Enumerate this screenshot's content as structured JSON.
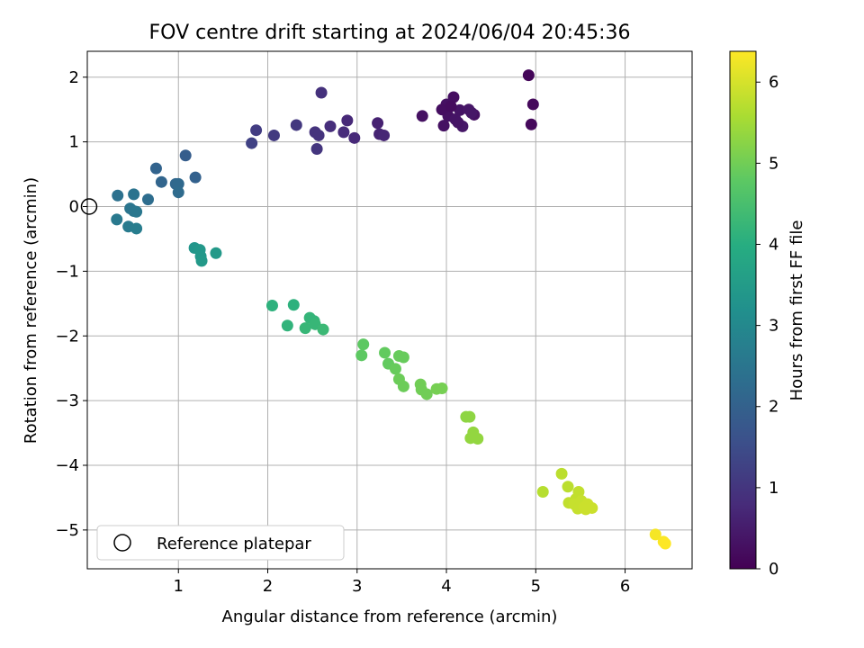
{
  "chart_data": {
    "type": "scatter",
    "title": "FOV centre drift starting at 2024/06/04 20:45:36",
    "xlabel": "Angular distance from reference (arcmin)",
    "ylabel": "Rotation from reference (arcmin)",
    "xlim": [
      -0.02,
      6.75
    ],
    "ylim": [
      -5.6,
      2.4
    ],
    "xticks": [
      1,
      2,
      3,
      4,
      5,
      6
    ],
    "yticks": [
      -5,
      -4,
      -3,
      -2,
      -1,
      0,
      1,
      2
    ],
    "grid": true,
    "legend": {
      "position": "lower-left",
      "entries": [
        "Reference platepar"
      ]
    },
    "reference_point": {
      "x": 0,
      "y": 0,
      "label": "Reference platepar"
    },
    "colorbar": {
      "label": "Hours from first FF file",
      "range": [
        0,
        6.38
      ],
      "ticks": [
        0,
        1,
        2,
        3,
        4,
        5,
        6
      ],
      "colormap": "viridis"
    },
    "series": [
      {
        "points": [
          [
            4.92,
            2.03,
            0.1
          ],
          [
            4.97,
            1.58,
            0.15
          ],
          [
            4.95,
            1.27,
            0.15
          ],
          [
            3.73,
            1.4,
            0.3
          ],
          [
            3.97,
            1.25,
            0.3
          ],
          [
            4.08,
            1.69,
            0.25
          ],
          [
            4.0,
            1.58,
            0.3
          ],
          [
            4.15,
            1.49,
            0.35
          ],
          [
            4.02,
            1.4,
            0.3
          ],
          [
            4.25,
            1.5,
            0.4
          ],
          [
            4.18,
            1.24,
            0.4
          ],
          [
            4.31,
            1.42,
            0.3
          ],
          [
            4.1,
            1.35,
            0.35
          ],
          [
            3.95,
            1.5,
            0.25
          ],
          [
            4.05,
            1.55,
            0.2
          ],
          [
            4.13,
            1.3,
            0.35
          ],
          [
            4.28,
            1.45,
            0.4
          ],
          [
            3.23,
            1.29,
            0.6
          ],
          [
            3.25,
            1.12,
            0.65
          ],
          [
            3.3,
            1.1,
            0.7
          ],
          [
            2.89,
            1.33,
            0.75
          ],
          [
            2.97,
            1.06,
            0.75
          ],
          [
            2.85,
            1.15,
            0.8
          ],
          [
            2.7,
            1.24,
            0.85
          ],
          [
            2.6,
            1.76,
            0.9
          ],
          [
            2.53,
            1.15,
            0.95
          ],
          [
            2.57,
            1.1,
            0.95
          ],
          [
            2.55,
            0.89,
            1.0
          ],
          [
            2.32,
            1.26,
            1.05
          ],
          [
            2.07,
            1.1,
            1.1
          ],
          [
            1.87,
            1.18,
            1.15
          ],
          [
            1.82,
            0.98,
            1.25
          ],
          [
            1.08,
            0.79,
            1.9
          ],
          [
            1.19,
            0.45,
            2.0
          ],
          [
            0.75,
            0.59,
            2.05
          ],
          [
            0.81,
            0.38,
            2.1
          ],
          [
            0.97,
            0.35,
            2.15
          ],
          [
            1.0,
            0.35,
            2.2
          ],
          [
            1.0,
            0.22,
            2.25
          ],
          [
            0.66,
            0.11,
            2.3
          ],
          [
            0.32,
            0.17,
            2.4
          ],
          [
            0.5,
            0.19,
            2.45
          ],
          [
            0.46,
            -0.03,
            2.5
          ],
          [
            0.5,
            -0.07,
            2.5
          ],
          [
            0.53,
            -0.08,
            2.55
          ],
          [
            0.31,
            -0.2,
            2.6
          ],
          [
            0.44,
            -0.31,
            2.65
          ],
          [
            0.53,
            -0.34,
            2.7
          ],
          [
            1.18,
            -0.64,
            3.35
          ],
          [
            1.24,
            -0.67,
            3.4
          ],
          [
            1.25,
            -0.77,
            3.4
          ],
          [
            1.26,
            -0.84,
            3.45
          ],
          [
            1.42,
            -0.72,
            3.45
          ],
          [
            2.05,
            -1.53,
            4.1
          ],
          [
            2.29,
            -1.52,
            4.1
          ],
          [
            2.22,
            -1.84,
            4.15
          ],
          [
            2.47,
            -1.72,
            4.2
          ],
          [
            2.52,
            -1.77,
            4.2
          ],
          [
            2.42,
            -1.88,
            4.25
          ],
          [
            2.53,
            -1.82,
            4.25
          ],
          [
            2.62,
            -1.9,
            4.3
          ],
          [
            3.07,
            -2.13,
            4.8
          ],
          [
            3.05,
            -2.3,
            4.8
          ],
          [
            3.31,
            -2.26,
            4.85
          ],
          [
            3.35,
            -2.43,
            4.85
          ],
          [
            3.43,
            -2.51,
            4.9
          ],
          [
            3.47,
            -2.31,
            4.9
          ],
          [
            3.52,
            -2.33,
            4.9
          ],
          [
            3.47,
            -2.67,
            4.95
          ],
          [
            3.52,
            -2.78,
            4.95
          ],
          [
            3.71,
            -2.75,
            5.0
          ],
          [
            3.72,
            -2.83,
            5.0
          ],
          [
            3.78,
            -2.9,
            5.0
          ],
          [
            3.89,
            -2.82,
            5.05
          ],
          [
            3.95,
            -2.81,
            5.05
          ],
          [
            4.22,
            -3.25,
            5.3
          ],
          [
            4.26,
            -3.25,
            5.3
          ],
          [
            4.3,
            -3.49,
            5.35
          ],
          [
            4.27,
            -3.58,
            5.35
          ],
          [
            4.35,
            -3.59,
            5.35
          ],
          [
            5.08,
            -4.41,
            5.7
          ],
          [
            5.29,
            -4.13,
            5.75
          ],
          [
            5.36,
            -4.33,
            5.75
          ],
          [
            5.48,
            -4.41,
            5.8
          ],
          [
            5.45,
            -4.52,
            5.8
          ],
          [
            5.37,
            -4.58,
            5.8
          ],
          [
            5.43,
            -4.6,
            5.85
          ],
          [
            5.47,
            -4.67,
            5.85
          ],
          [
            5.51,
            -4.55,
            5.85
          ],
          [
            5.55,
            -4.64,
            5.9
          ],
          [
            5.58,
            -4.6,
            5.9
          ],
          [
            5.63,
            -4.66,
            5.9
          ],
          [
            5.56,
            -4.68,
            5.9
          ],
          [
            6.34,
            -5.07,
            6.3
          ],
          [
            6.43,
            -5.18,
            6.35
          ],
          [
            6.45,
            -5.21,
            6.38
          ]
        ]
      }
    ]
  }
}
